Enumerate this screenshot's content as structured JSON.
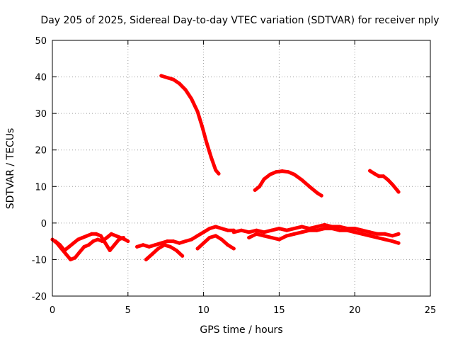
{
  "chart_data": {
    "type": "scatter",
    "title": "Day 205 of 2025, Sidereal Day-to-day VTEC variation (SDTVAR) for receiver nply",
    "xlabel": "GPS time / hours",
    "ylabel": "SDTVAR / TECUs",
    "xlim": [
      0,
      25
    ],
    "ylim": [
      -20,
      50
    ],
    "xticks": [
      0,
      5,
      10,
      15,
      20,
      25
    ],
    "yticks": [
      -20,
      -10,
      0,
      10,
      20,
      30,
      40,
      50
    ],
    "grid": true,
    "series_color": "#ff0000",
    "series": [
      {
        "name": "arc-high-descending",
        "points": [
          [
            7.2,
            40.3
          ],
          [
            7.6,
            39.8
          ],
          [
            8.0,
            39.3
          ],
          [
            8.4,
            38.2
          ],
          [
            8.8,
            36.5
          ],
          [
            9.2,
            34.0
          ],
          [
            9.6,
            30.5
          ],
          [
            9.9,
            26.5
          ],
          [
            10.2,
            22.0
          ],
          [
            10.5,
            18.0
          ],
          [
            10.8,
            14.5
          ],
          [
            11.0,
            13.5
          ]
        ]
      },
      {
        "name": "arc-mid-hump",
        "points": [
          [
            13.4,
            9.0
          ],
          [
            13.7,
            10.0
          ],
          [
            14.0,
            12.0
          ],
          [
            14.4,
            13.3
          ],
          [
            14.8,
            14.0
          ],
          [
            15.2,
            14.2
          ],
          [
            15.6,
            14.0
          ],
          [
            16.0,
            13.3
          ],
          [
            16.5,
            11.8
          ],
          [
            17.0,
            10.0
          ],
          [
            17.5,
            8.3
          ],
          [
            17.8,
            7.5
          ]
        ]
      },
      {
        "name": "arc-late-short",
        "points": [
          [
            21.0,
            14.3
          ],
          [
            21.3,
            13.5
          ],
          [
            21.6,
            12.8
          ],
          [
            21.9,
            12.8
          ],
          [
            22.2,
            11.8
          ],
          [
            22.5,
            10.5
          ],
          [
            22.8,
            9.0
          ],
          [
            22.9,
            8.5
          ]
        ]
      },
      {
        "name": "band-low-early",
        "points": [
          [
            0.0,
            -4.5
          ],
          [
            0.3,
            -5.5
          ],
          [
            0.6,
            -7.0
          ],
          [
            0.9,
            -8.5
          ],
          [
            1.2,
            -10.0
          ],
          [
            1.5,
            -9.5
          ],
          [
            1.8,
            -8.0
          ],
          [
            2.1,
            -6.5
          ],
          [
            2.4,
            -6.0
          ],
          [
            2.7,
            -5.0
          ],
          [
            3.0,
            -4.5
          ],
          [
            3.3,
            -5.0
          ],
          [
            3.6,
            -4.0
          ],
          [
            3.9,
            -3.0
          ],
          [
            4.2,
            -3.5
          ],
          [
            4.5,
            -4.0
          ],
          [
            4.8,
            -4.5
          ],
          [
            5.0,
            -5.0
          ]
        ]
      },
      {
        "name": "band-low-early-2",
        "points": [
          [
            0.2,
            -5.0
          ],
          [
            0.5,
            -6.0
          ],
          [
            0.8,
            -7.5
          ],
          [
            1.1,
            -6.5
          ],
          [
            1.4,
            -5.5
          ],
          [
            1.7,
            -4.5
          ],
          [
            2.0,
            -4.0
          ],
          [
            2.3,
            -3.5
          ],
          [
            2.6,
            -3.0
          ],
          [
            2.9,
            -3.0
          ],
          [
            3.2,
            -3.5
          ],
          [
            3.5,
            -5.5
          ],
          [
            3.8,
            -7.5
          ],
          [
            4.1,
            -6.0
          ],
          [
            4.4,
            -4.5
          ],
          [
            4.7,
            -4.0
          ]
        ]
      },
      {
        "name": "band-low-mid",
        "points": [
          [
            5.6,
            -6.5
          ],
          [
            6.0,
            -6.0
          ],
          [
            6.4,
            -6.5
          ],
          [
            6.8,
            -6.0
          ],
          [
            7.2,
            -5.5
          ],
          [
            7.6,
            -5.0
          ],
          [
            8.0,
            -5.0
          ],
          [
            8.4,
            -5.5
          ],
          [
            8.8,
            -5.0
          ],
          [
            9.2,
            -4.5
          ],
          [
            9.6,
            -3.5
          ],
          [
            10.0,
            -2.5
          ],
          [
            10.4,
            -1.5
          ],
          [
            10.8,
            -1.0
          ],
          [
            11.2,
            -1.5
          ],
          [
            11.6,
            -2.0
          ],
          [
            12.0,
            -2.0
          ]
        ]
      },
      {
        "name": "band-low-mid-2",
        "points": [
          [
            6.2,
            -10.0
          ],
          [
            6.6,
            -8.5
          ],
          [
            7.0,
            -7.0
          ],
          [
            7.4,
            -6.0
          ],
          [
            7.8,
            -6.5
          ],
          [
            8.2,
            -7.5
          ],
          [
            8.6,
            -9.0
          ]
        ]
      },
      {
        "name": "band-low-mid-3",
        "points": [
          [
            9.6,
            -7.0
          ],
          [
            10.0,
            -5.5
          ],
          [
            10.4,
            -4.0
          ],
          [
            10.8,
            -3.5
          ],
          [
            11.2,
            -4.5
          ],
          [
            11.6,
            -6.0
          ],
          [
            12.0,
            -7.0
          ]
        ]
      },
      {
        "name": "band-low-late",
        "points": [
          [
            12.0,
            -2.5
          ],
          [
            12.5,
            -2.0
          ],
          [
            13.0,
            -2.5
          ],
          [
            13.5,
            -2.0
          ],
          [
            14.0,
            -2.5
          ],
          [
            14.5,
            -2.0
          ],
          [
            15.0,
            -1.5
          ],
          [
            15.5,
            -2.0
          ],
          [
            16.0,
            -1.5
          ],
          [
            16.5,
            -1.0
          ],
          [
            17.0,
            -1.5
          ],
          [
            17.5,
            -1.0
          ],
          [
            18.0,
            -0.5
          ],
          [
            18.5,
            -1.0
          ],
          [
            19.0,
            -1.0
          ],
          [
            19.5,
            -1.5
          ],
          [
            20.0,
            -1.5
          ],
          [
            20.5,
            -2.0
          ],
          [
            21.0,
            -2.5
          ],
          [
            21.5,
            -3.0
          ],
          [
            22.0,
            -3.0
          ],
          [
            22.5,
            -3.5
          ],
          [
            22.9,
            -3.0
          ]
        ]
      },
      {
        "name": "band-low-late-2",
        "points": [
          [
            13.0,
            -4.0
          ],
          [
            13.5,
            -3.0
          ],
          [
            14.0,
            -3.5
          ],
          [
            14.5,
            -4.0
          ],
          [
            15.0,
            -4.5
          ],
          [
            15.5,
            -3.5
          ],
          [
            16.0,
            -3.0
          ],
          [
            16.5,
            -2.5
          ],
          [
            17.0,
            -2.0
          ],
          [
            17.5,
            -2.0
          ],
          [
            18.0,
            -1.5
          ],
          [
            18.5,
            -1.5
          ],
          [
            19.0,
            -2.0
          ],
          [
            19.5,
            -2.0
          ],
          [
            20.0,
            -2.5
          ],
          [
            20.5,
            -3.0
          ],
          [
            21.0,
            -3.5
          ],
          [
            21.5,
            -4.0
          ],
          [
            22.0,
            -4.5
          ],
          [
            22.5,
            -5.0
          ],
          [
            22.9,
            -5.5
          ]
        ]
      }
    ]
  }
}
